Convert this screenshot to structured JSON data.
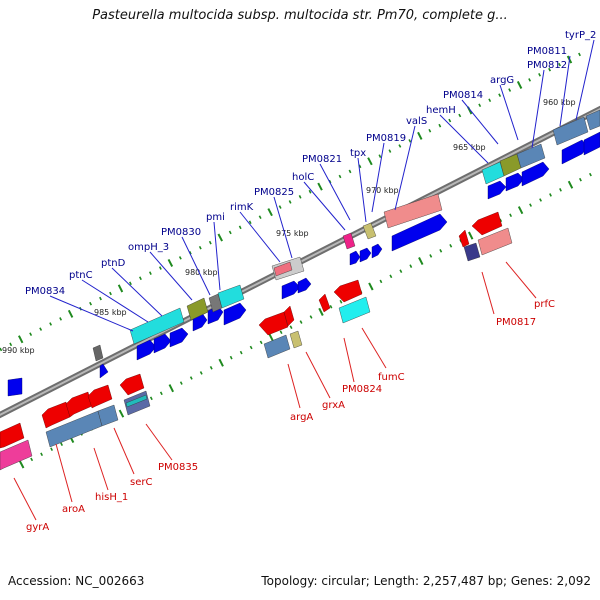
{
  "title": "Pasteurella multocida subsp. multocida str. Pm70, complete g...",
  "accession": "Accession: NC_002663",
  "summary": "Topology: circular; Length: 2,257,487 bp; Genes: 2,092",
  "colors": {
    "backbone": "#8c8c8c",
    "tick": "#1f8a1f",
    "label_forward": "#00008b",
    "label_reverse": "#cc0000",
    "leader_forward": "#2222cc",
    "leader_reverse": "#dd2222",
    "cds_forward": "#0000ee",
    "cds_reverse": "#ee0000",
    "rna": "#00dddd",
    "pseudo": "#5a86b6",
    "trna": "#e8607a",
    "misc": "#8a9a2a"
  },
  "kbp_labels": [
    "990 kbp",
    "985 kbp",
    "980 kbp",
    "975 kbp",
    "970 kbp",
    "965 kbp",
    "960 kbp"
  ],
  "genes_forward": [
    "PM0834",
    "ptnC",
    "ptnD",
    "ompH_3",
    "PM0830",
    "pmi",
    "rimK",
    "PM0825",
    "holC",
    "PM0821",
    "tpx",
    "PM0819",
    "valS",
    "hemH",
    "PM0814",
    "argG",
    "PM0812",
    "PM0811",
    "tyrP_2"
  ],
  "genes_reverse": [
    "gyrA",
    "aroA",
    "hisH_1",
    "serC",
    "PM0835",
    "argA",
    "grxA",
    "PM0824",
    "fumC",
    "PM0817",
    "prfC"
  ]
}
